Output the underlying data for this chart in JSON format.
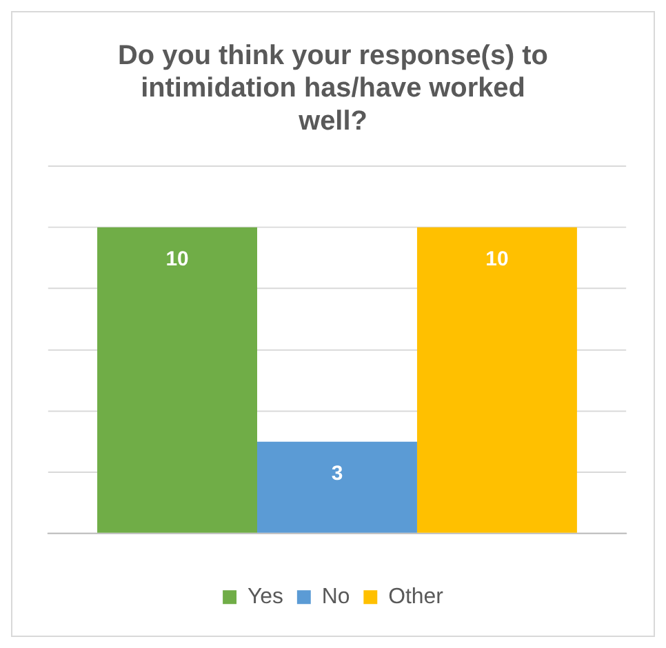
{
  "chart_data": {
    "type": "bar",
    "title": "Do you think your response(s) to intimidation has/have worked well?",
    "categories": [
      null
    ],
    "series": [
      {
        "name": "Yes",
        "color": "#70ad47",
        "values": [
          10
        ]
      },
      {
        "name": "No",
        "color": "#5b9bd5",
        "values": [
          3
        ]
      },
      {
        "name": "Other",
        "color": "#ffc000",
        "values": [
          10
        ]
      }
    ],
    "ylim": [
      0,
      12
    ],
    "yticks": [
      {
        "value": 0,
        "label": null
      },
      {
        "value": 2,
        "label": null
      },
      {
        "value": 4,
        "label": null
      },
      {
        "value": 6,
        "label": null
      },
      {
        "value": 8,
        "label": null
      },
      {
        "value": 10,
        "label": null
      },
      {
        "value": 12,
        "label": null
      }
    ],
    "grid": "y",
    "legend": "bottom",
    "data_labels": true
  }
}
